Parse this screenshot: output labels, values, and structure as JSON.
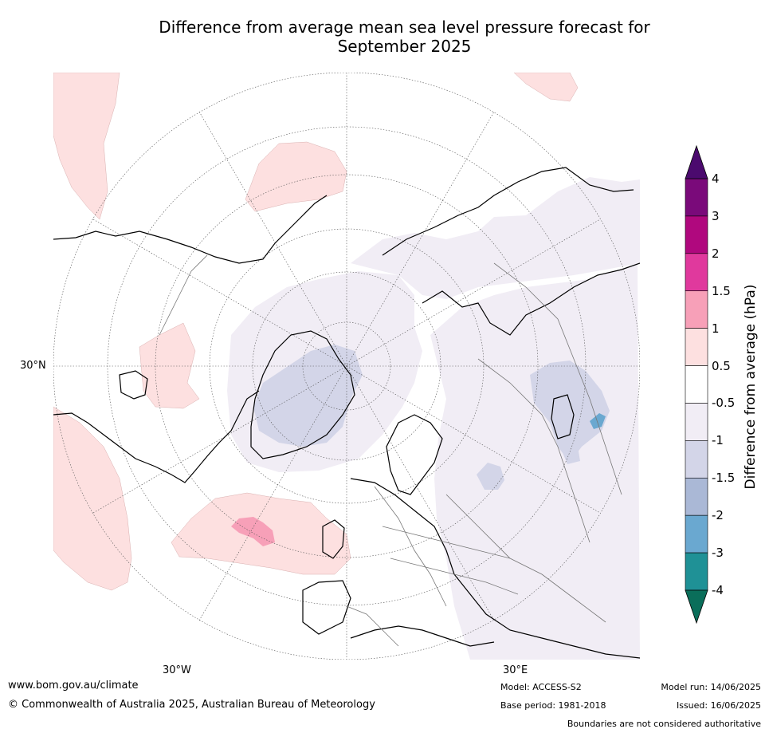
{
  "title_line1": "Difference from average mean sea level pressure forecast for",
  "title_line2": "September 2025",
  "map_labels": {
    "lat30n": "30°N",
    "lon30w": "30°W",
    "lon30e": "30°E"
  },
  "colorbar": {
    "label": "Difference from average (hPa)",
    "ticks": [
      "4",
      "3",
      "2",
      "1.5",
      "1",
      "0.5",
      "-0.5",
      "-1",
      "-1.5",
      "-2",
      "-3",
      "-4"
    ],
    "colors": [
      "#4b0a6e",
      "#7a0a7a",
      "#b0087e",
      "#e0399d",
      "#f7a0b8",
      "#fde0e0",
      "#ffffff",
      "#f1edf5",
      "#d3d5e8",
      "#aab8d6",
      "#6aa8d0",
      "#1f9196",
      "#0a6e5a"
    ]
  },
  "footer": {
    "website": "www.bom.gov.au/climate",
    "copyright": "© Commonwealth of Australia 2025, Australian Bureau of Meteorology",
    "model": "Model: ACCESS-S2",
    "base_period": "Base period: 1981-2018",
    "model_run": "Model run: 14/06/2025",
    "issued": "Issued: 16/06/2025",
    "disclaimer": "Boundaries are not considered authoritative"
  }
}
